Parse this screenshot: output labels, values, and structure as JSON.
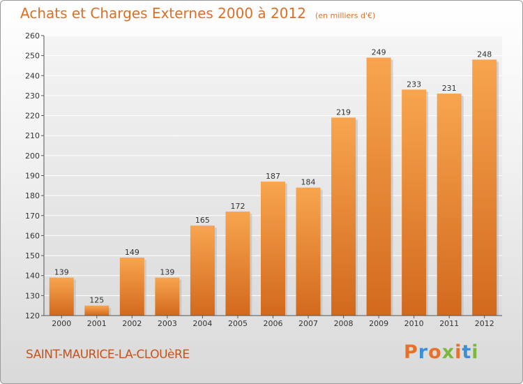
{
  "header": {
    "title": "Achats et Charges Externes 2000 à 2012",
    "unit": "(en milliers d'€)"
  },
  "footer": {
    "commune": "SAINT-MAURICE-LA-CLOUèRE",
    "logo": "Proxiti"
  },
  "colors": {
    "accent": "#d9702a",
    "bar_light": "#f8a54f",
    "bar_dark": "#d2691c",
    "logo_letters": [
      "#e8712a",
      "#3b8fd6",
      "#e8712a",
      "#7cb83a",
      "#e8712a",
      "#3b8fd6",
      "#7cb83a"
    ]
  },
  "chart_data": {
    "type": "bar",
    "title": "Achats et Charges Externes 2000 à 2012",
    "subtitle": "(en milliers d'€)",
    "categories": [
      "2000",
      "2001",
      "2002",
      "2003",
      "2004",
      "2005",
      "2006",
      "2007",
      "2008",
      "2009",
      "2010",
      "2011",
      "2012"
    ],
    "values": [
      139,
      125,
      149,
      139,
      165,
      172,
      187,
      184,
      219,
      249,
      233,
      231,
      248
    ],
    "ylim": [
      120,
      260
    ],
    "yticks": [
      120,
      130,
      140,
      150,
      160,
      170,
      180,
      190,
      200,
      210,
      220,
      230,
      240,
      250,
      260
    ],
    "grid": true,
    "legend": "none",
    "data_labels": true
  }
}
